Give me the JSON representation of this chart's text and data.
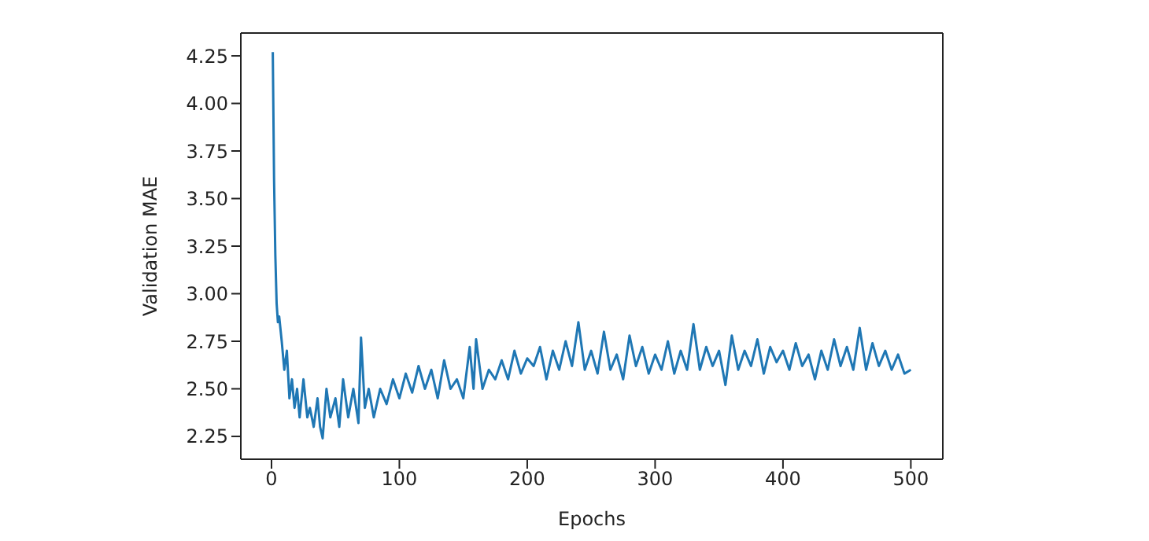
{
  "chart_data": {
    "type": "line",
    "xlabel": "Epochs",
    "ylabel": "Validation MAE",
    "grid": false,
    "marker": "none",
    "line_style": "solid",
    "x": [
      1,
      2,
      3,
      4,
      5,
      6,
      8,
      10,
      12,
      14,
      16,
      18,
      20,
      22,
      25,
      28,
      30,
      33,
      36,
      38,
      40,
      43,
      46,
      50,
      53,
      56,
      60,
      64,
      68,
      70,
      73,
      76,
      80,
      85,
      90,
      95,
      100,
      105,
      110,
      115,
      120,
      125,
      130,
      135,
      140,
      145,
      150,
      155,
      158,
      160,
      165,
      170,
      175,
      180,
      185,
      190,
      195,
      200,
      205,
      210,
      215,
      220,
      225,
      230,
      235,
      240,
      245,
      250,
      255,
      260,
      265,
      270,
      275,
      280,
      285,
      290,
      295,
      300,
      305,
      310,
      315,
      320,
      325,
      330,
      335,
      340,
      345,
      350,
      355,
      360,
      365,
      370,
      375,
      380,
      385,
      390,
      395,
      400,
      405,
      410,
      415,
      420,
      425,
      430,
      435,
      440,
      445,
      450,
      455,
      460,
      465,
      470,
      475,
      480,
      485,
      490,
      495,
      500
    ],
    "series": [
      {
        "color": "#1f77b4",
        "values": [
          4.27,
          3.6,
          3.2,
          2.95,
          2.85,
          2.88,
          2.75,
          2.6,
          2.7,
          2.45,
          2.55,
          2.4,
          2.5,
          2.35,
          2.55,
          2.35,
          2.4,
          2.3,
          2.45,
          2.3,
          2.24,
          2.5,
          2.35,
          2.45,
          2.3,
          2.55,
          2.35,
          2.5,
          2.32,
          2.77,
          2.4,
          2.5,
          2.35,
          2.5,
          2.42,
          2.55,
          2.45,
          2.58,
          2.48,
          2.62,
          2.5,
          2.6,
          2.45,
          2.65,
          2.5,
          2.55,
          2.45,
          2.72,
          2.5,
          2.76,
          2.5,
          2.6,
          2.55,
          2.65,
          2.55,
          2.7,
          2.58,
          2.66,
          2.62,
          2.72,
          2.55,
          2.7,
          2.6,
          2.75,
          2.62,
          2.85,
          2.6,
          2.7,
          2.58,
          2.8,
          2.6,
          2.68,
          2.55,
          2.78,
          2.62,
          2.72,
          2.58,
          2.68,
          2.6,
          2.75,
          2.58,
          2.7,
          2.6,
          2.84,
          2.6,
          2.72,
          2.62,
          2.7,
          2.52,
          2.78,
          2.6,
          2.7,
          2.62,
          2.76,
          2.58,
          2.72,
          2.64,
          2.7,
          2.6,
          2.74,
          2.62,
          2.68,
          2.55,
          2.7,
          2.6,
          2.76,
          2.62,
          2.72,
          2.6,
          2.82,
          2.6,
          2.74,
          2.62,
          2.7,
          2.6,
          2.68,
          2.58,
          2.6
        ]
      }
    ],
    "xlim": [
      -24,
      525
    ],
    "xticks": [
      0,
      100,
      200,
      300,
      400,
      500
    ],
    "ylim": [
      2.13,
      4.37
    ],
    "yticks": [
      {
        "value": 2.25,
        "label": "2.25"
      },
      {
        "value": 2.5,
        "label": "2.50"
      },
      {
        "value": 2.75,
        "label": "2.75"
      },
      {
        "value": 3.0,
        "label": "3.00"
      },
      {
        "value": 3.25,
        "label": "3.25"
      },
      {
        "value": 3.5,
        "label": "3.50"
      },
      {
        "value": 3.75,
        "label": "3.75"
      },
      {
        "value": 4.0,
        "label": "4.00"
      },
      {
        "value": 4.25,
        "label": "4.25"
      }
    ]
  }
}
